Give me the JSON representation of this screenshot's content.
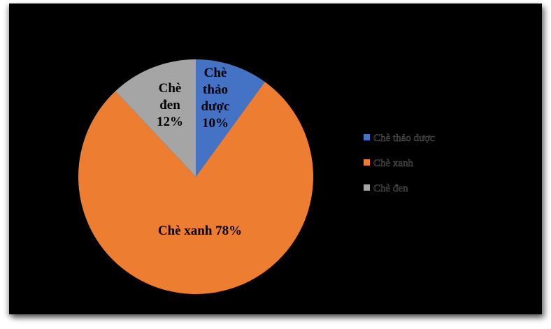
{
  "chart_data": {
    "type": "pie",
    "title": "",
    "start_angle": "top",
    "direction": "clockwise",
    "background": "#000000",
    "legend_placement": "right",
    "slices": [
      {
        "name": "Chè thảo dược",
        "value": 10,
        "label_lines": [
          "Chè",
          "thảo",
          "dược",
          "10%"
        ],
        "color": "#4472C4"
      },
      {
        "name": "Chè xanh",
        "value": 78,
        "label_lines": [
          "Chè xanh 78%"
        ],
        "color": "#ED7D31"
      },
      {
        "name": "Chè đen",
        "value": 12,
        "label_lines": [
          "Chè",
          "đen",
          "12%"
        ],
        "color": "#A5A5A5"
      }
    ]
  }
}
